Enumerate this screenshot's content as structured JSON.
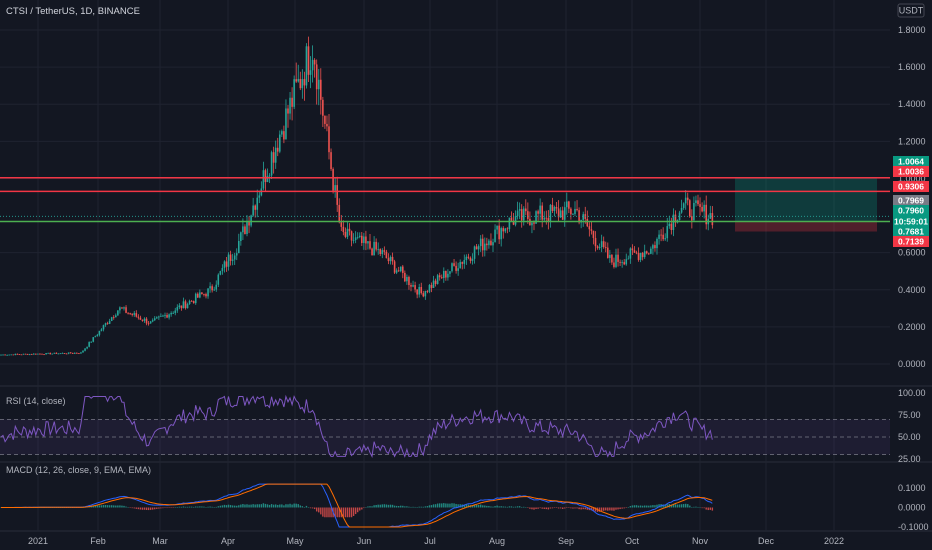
{
  "header": {
    "symbol": "CTSI / TetherUS, 1D, BINANCE",
    "currency_badge": "USDT"
  },
  "chart_data": [
    {
      "type": "candlestick",
      "ylim": [
        0,
        1.8
      ],
      "y_ticks": [
        "1.8000",
        "1.6000",
        "1.4000",
        "1.2000",
        "1.0000",
        "0.6000",
        "0.4000",
        "0.2000",
        "0.0000"
      ],
      "x_ticks": [
        "2021",
        "Feb",
        "Mar",
        "Apr",
        "May",
        "Jun",
        "Jul",
        "Aug",
        "Sep",
        "Oct",
        "Nov",
        "Dec",
        "2022"
      ],
      "close_series_key_points": [
        {
          "month": "Jan",
          "close": 0.05
        },
        {
          "month": "Feb early",
          "close": 0.06
        },
        {
          "month": "Feb mid",
          "close": 0.3
        },
        {
          "month": "Mar",
          "close": 0.22
        },
        {
          "month": "Apr",
          "close": 0.4
        },
        {
          "month": "Apr mid",
          "close": 0.68
        },
        {
          "month": "May peak",
          "close": 1.72
        },
        {
          "month": "May end",
          "close": 0.7
        },
        {
          "month": "Jun",
          "close": 0.6
        },
        {
          "month": "Jul",
          "close": 0.38
        },
        {
          "month": "Aug",
          "close": 0.78
        },
        {
          "month": "Sep",
          "close": 0.83
        },
        {
          "month": "Sep end",
          "close": 0.55
        },
        {
          "month": "Oct",
          "close": 0.62
        },
        {
          "month": "Oct end",
          "close": 0.85
        },
        {
          "month": "Nov",
          "close": 0.796
        }
      ],
      "horizontal_lines": [
        {
          "value": 1.0036,
          "color": "#f23645"
        },
        {
          "value": 0.9306,
          "color": "#f23645"
        },
        {
          "value": 0.7681,
          "color": "#4caf50"
        }
      ],
      "position_box": {
        "entry": 0.7681,
        "target": 1.0064,
        "stop": 0.7139
      },
      "price_tags": [
        {
          "text": "1.0064",
          "value": 1.0064,
          "color": "#089981"
        },
        {
          "text": "1.0036",
          "value": 1.0036,
          "color": "#f23645"
        },
        {
          "text": "0.9306",
          "value": 0.9306,
          "color": "#f23645"
        },
        {
          "text": "0.7969",
          "value": 0.7969,
          "color": "#787b86"
        },
        {
          "text": "0.7960",
          "value": 0.796,
          "color": "#089981"
        },
        {
          "text": "10:59:01",
          "value": 0.796,
          "color": "#089981"
        },
        {
          "text": "0.7681",
          "value": 0.7681,
          "color": "#089981"
        },
        {
          "text": "0.7139",
          "value": 0.7139,
          "color": "#f23645"
        }
      ]
    },
    {
      "type": "line",
      "title": "RSI (14, close)",
      "ylim": [
        25,
        100
      ],
      "y_ticks": [
        "100.00",
        "75.00",
        "50.00",
        "25.00"
      ],
      "band": [
        30,
        70
      ],
      "midline": 50
    },
    {
      "type": "bar",
      "title": "MACD (12, 26, close, 9, EMA, EMA)",
      "ylim": [
        -0.1,
        0.1
      ],
      "y_ticks": [
        "0.1000",
        "0.0000",
        "-0.1000"
      ]
    }
  ],
  "colors": {
    "background": "#131722",
    "up": "#26a69a",
    "down": "#ef5350",
    "rsi": "#7e57c2",
    "macd": "#2962ff",
    "signal": "#ff6d00",
    "grid": "#1f2330",
    "text": "#b2b5be"
  }
}
